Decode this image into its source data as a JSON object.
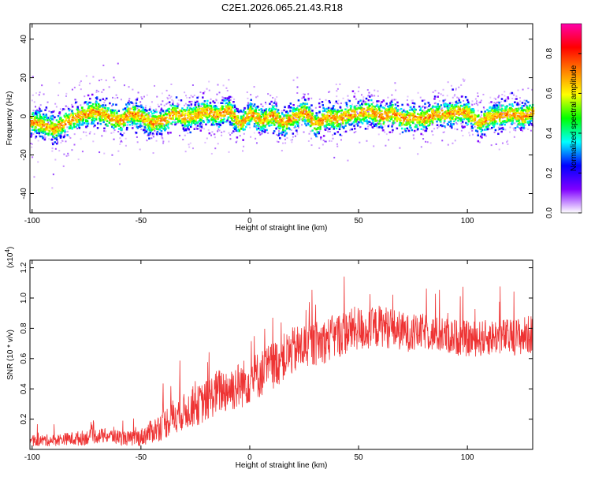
{
  "title": "C2E1.2026.065.21.43.R18",
  "chart_data": [
    {
      "type": "heatmap",
      "title": "C2E1.2026.065.21.43.R18",
      "xlabel": "Height of straight line (km)",
      "ylabel": "Frequency (Hz)",
      "xlim": [
        -101,
        130
      ],
      "ylim": [
        -50,
        48
      ],
      "x_ticks": [
        -100,
        -50,
        0,
        50,
        100
      ],
      "y_ticks": [
        -40,
        -20,
        0,
        20,
        40
      ],
      "colorbar": {
        "label": "Normalized spectral amplitude",
        "range": [
          0.0,
          0.95
        ],
        "ticks": [
          0.0,
          0.2,
          0.4,
          0.6,
          0.8
        ],
        "colormap": "rainbow",
        "colors": [
          "#ffffff",
          "#7f00ff",
          "#0000ff",
          "#00ffff",
          "#00ff00",
          "#ffff00",
          "#ff8000",
          "#ff0000",
          "#ff00aa"
        ]
      },
      "ridge": {
        "x": [
          -101,
          -95,
          -90,
          -85,
          -80,
          -75,
          -70,
          -65,
          -60,
          -55,
          -50,
          -45,
          -40,
          -35,
          -30,
          -25,
          -20,
          -15,
          -10,
          -5,
          0,
          5,
          10,
          15,
          20,
          25,
          30,
          35,
          40,
          45,
          50,
          55,
          60,
          65,
          70,
          75,
          80,
          85,
          90,
          95,
          100,
          105,
          110,
          115,
          120,
          125,
          130
        ],
        "frequency": [
          -2,
          -4,
          -6,
          -3,
          0,
          2,
          3,
          0,
          -2,
          2,
          0,
          -3,
          -2,
          2,
          0,
          1,
          3,
          1,
          4,
          -4,
          2,
          -2,
          1,
          -3,
          0,
          3,
          -4,
          0,
          -1,
          1,
          2,
          3,
          0,
          2,
          -1,
          0,
          -1,
          2,
          1,
          3,
          2,
          -3,
          0,
          1,
          2,
          0,
          3
        ]
      }
    },
    {
      "type": "line",
      "xlabel": "Height of straight line (km)",
      "ylabel": "SNR (10 * v/v)",
      "y_scale_label": "(x10",
      "y_scale_exponent": "4",
      "y_scale_suffix": ")",
      "xlim": [
        -101,
        130
      ],
      "ylim": [
        0.0,
        1.25
      ],
      "x_ticks": [
        -100,
        -50,
        0,
        50,
        100
      ],
      "y_ticks": [
        0.2,
        0.4,
        0.6,
        0.8,
        1.0,
        1.2
      ],
      "color": "#ee3333",
      "series": [
        {
          "x": [
            -101,
            -95,
            -90,
            -85,
            -80,
            -75,
            -70,
            -65,
            -60,
            -55,
            -50,
            -45,
            -40,
            -35,
            -30,
            -25,
            -20,
            -15,
            -10,
            -5,
            0,
            5,
            10,
            15,
            20,
            25,
            30,
            35,
            40,
            45,
            50,
            55,
            60,
            65,
            70,
            75,
            80,
            85,
            90,
            95,
            100,
            105,
            110,
            115,
            120,
            125,
            130
          ],
          "mean": [
            0.05,
            0.06,
            0.06,
            0.07,
            0.07,
            0.08,
            0.09,
            0.09,
            0.08,
            0.07,
            0.08,
            0.12,
            0.16,
            0.22,
            0.25,
            0.28,
            0.32,
            0.38,
            0.4,
            0.42,
            0.46,
            0.5,
            0.55,
            0.6,
            0.65,
            0.68,
            0.7,
            0.72,
            0.75,
            0.78,
            0.8,
            0.78,
            0.82,
            0.8,
            0.78,
            0.76,
            0.78,
            0.76,
            0.75,
            0.74,
            0.73,
            0.73,
            0.74,
            0.75,
            0.74,
            0.75,
            0.76
          ],
          "spread": [
            0.03,
            0.04,
            0.04,
            0.04,
            0.05,
            0.05,
            0.05,
            0.05,
            0.05,
            0.05,
            0.06,
            0.08,
            0.1,
            0.12,
            0.12,
            0.13,
            0.14,
            0.15,
            0.16,
            0.16,
            0.16,
            0.16,
            0.16,
            0.16,
            0.16,
            0.16,
            0.15,
            0.15,
            0.15,
            0.15,
            0.15,
            0.14,
            0.14,
            0.14,
            0.13,
            0.12,
            0.12,
            0.12,
            0.12,
            0.12,
            0.12,
            0.12,
            0.12,
            0.12,
            0.12,
            0.13,
            0.13
          ]
        }
      ]
    }
  ]
}
